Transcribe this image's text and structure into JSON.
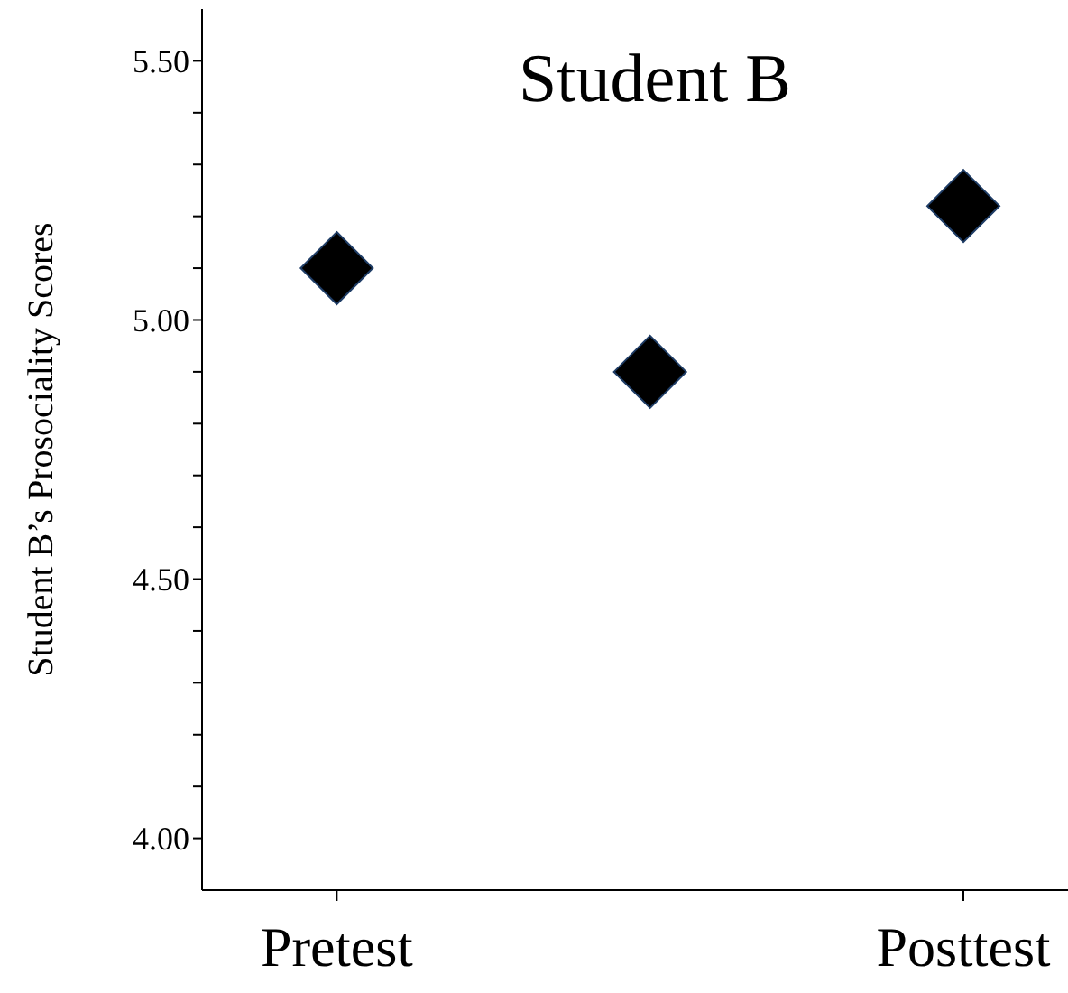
{
  "chart_data": {
    "type": "scatter",
    "title": "Student B",
    "ylabel": "Student B’s Prosociality Scores",
    "categories": [
      "Pretest",
      null,
      "Posttest"
    ],
    "series": [
      {
        "color": "#000000",
        "values": [
          5.1,
          4.9,
          5.22
        ]
      }
    ],
    "ylim": [
      3.9,
      5.6
    ],
    "yticks": [
      {
        "value": 4.0,
        "label": "4.00"
      },
      {
        "value": 4.1,
        "label": null
      },
      {
        "value": 4.2,
        "label": null
      },
      {
        "value": 4.3,
        "label": null
      },
      {
        "value": 4.4,
        "label": null
      },
      {
        "value": 4.5,
        "label": "4.50"
      },
      {
        "value": 4.6,
        "label": null
      },
      {
        "value": 4.7,
        "label": null
      },
      {
        "value": 4.8,
        "label": null
      },
      {
        "value": 4.9,
        "label": null
      },
      {
        "value": 5.0,
        "label": "5.00"
      },
      {
        "value": 5.1,
        "label": null
      },
      {
        "value": 5.2,
        "label": null
      },
      {
        "value": 5.3,
        "label": null
      },
      {
        "value": 5.4,
        "label": null
      },
      {
        "value": 5.5,
        "label": "5.50"
      }
    ],
    "marker": "diamond",
    "grid": false,
    "legend": false
  }
}
